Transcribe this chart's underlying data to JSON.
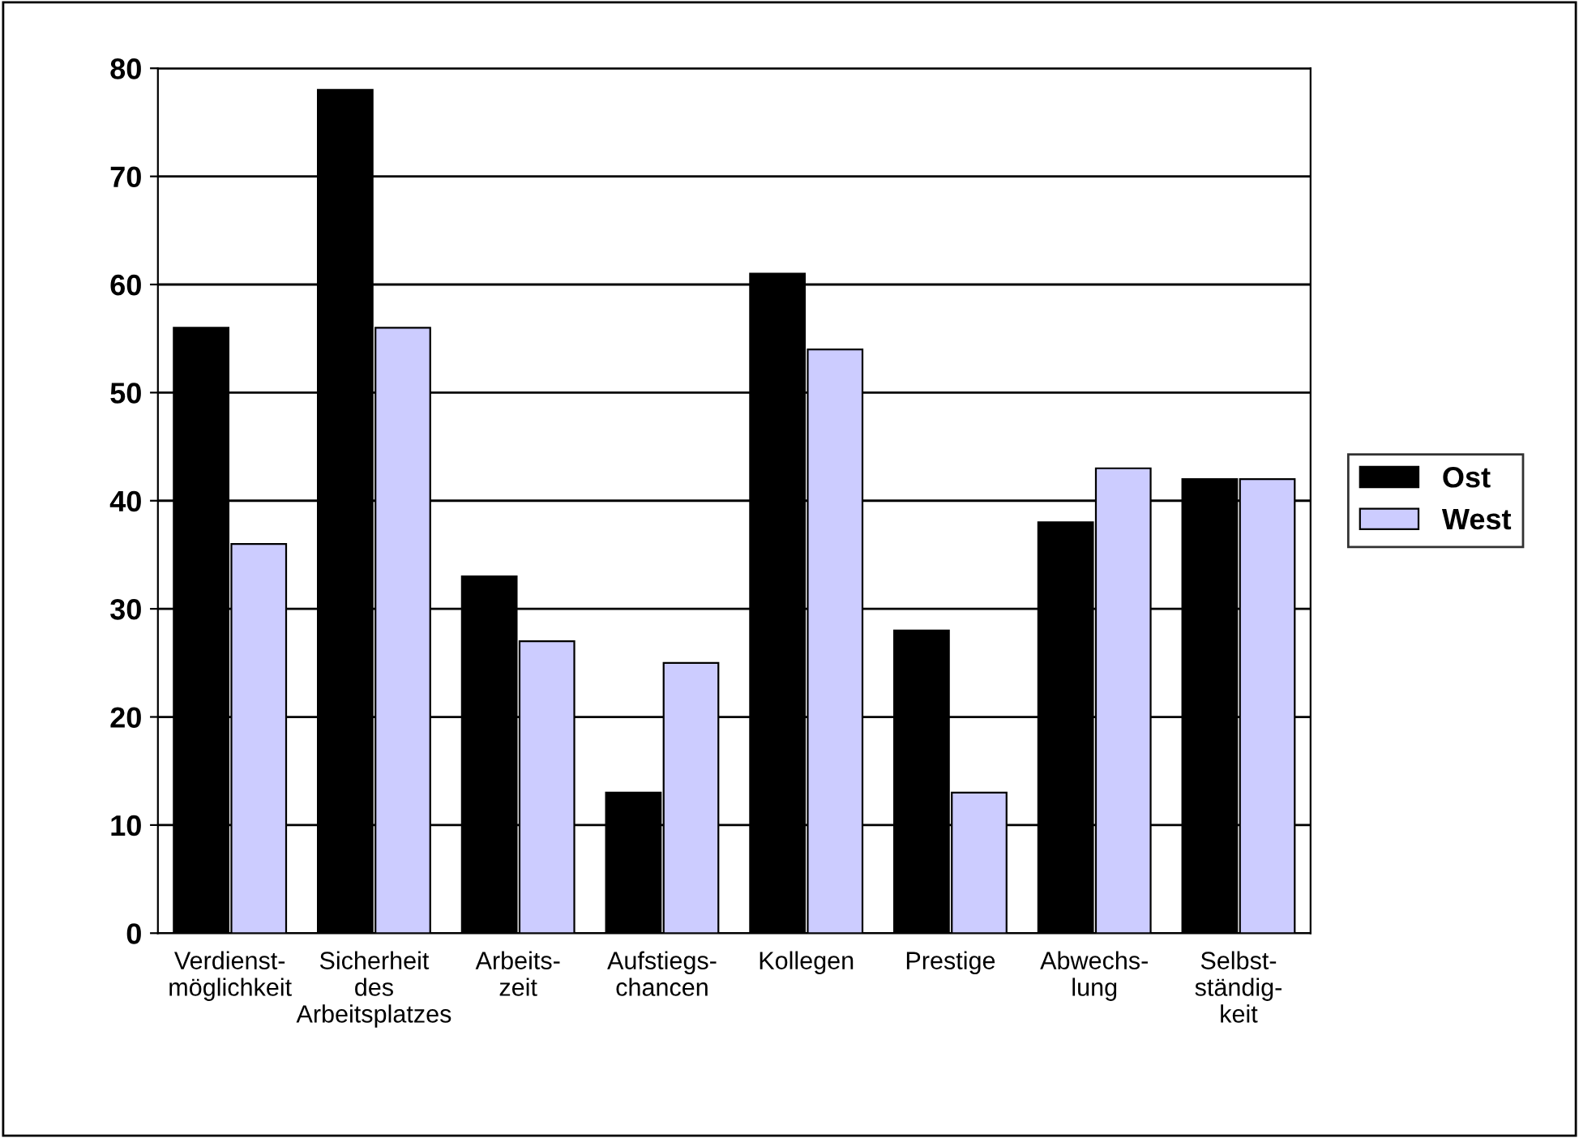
{
  "chart_data": {
    "type": "bar",
    "categories": [
      "Verdienst-\nmöglichkeit",
      "Sicherheit\ndes\nArbeitsplatzes",
      "Arbeits-\nzeit",
      "Aufstiegs-\nchancen",
      "Kollegen",
      "Prestige",
      "Abwechs-\nlung",
      "Selbst-\nständig-\nkeit"
    ],
    "series": [
      {
        "name": "Ost",
        "color": "#000000",
        "values": [
          56,
          78,
          33,
          13,
          61,
          28,
          38,
          42
        ]
      },
      {
        "name": "West",
        "color": "#ccccff",
        "values": [
          36,
          56,
          27,
          25,
          54,
          13,
          43,
          42
        ]
      }
    ],
    "ylim": [
      0,
      80
    ],
    "yticks": [
      0,
      10,
      20,
      30,
      40,
      50,
      60,
      70,
      80
    ],
    "grid": "y",
    "legend": "right"
  }
}
